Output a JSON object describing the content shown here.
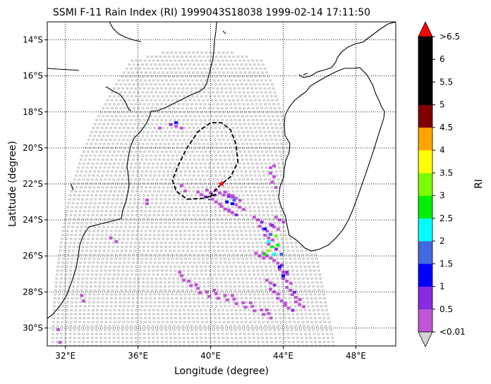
{
  "title": "SSMI F-11 Rain Index (RI) 1999043S18038 1999-02-14 17:11:50",
  "xlabel": "Longitude (degree)",
  "ylabel": "Latitude (degree)",
  "colorbar_label": "RI",
  "chart_data": {
    "type": "map",
    "xlim": [
      31.0,
      50.2
    ],
    "ylim": [
      -31.0,
      -13.0
    ],
    "grid": true,
    "x_ticks": [
      {
        "value": 32,
        "label": "32°E"
      },
      {
        "value": 36,
        "label": "36°E"
      },
      {
        "value": 40,
        "label": "40°E"
      },
      {
        "value": 44,
        "label": "44°E"
      },
      {
        "value": 48,
        "label": "48°E"
      }
    ],
    "y_ticks": [
      {
        "value": -14,
        "label": "14°S"
      },
      {
        "value": -16,
        "label": "16°S"
      },
      {
        "value": -18,
        "label": "18°S"
      },
      {
        "value": -20,
        "label": "20°S"
      },
      {
        "value": -22,
        "label": "22°S"
      },
      {
        "value": -24,
        "label": "24°S"
      },
      {
        "value": -26,
        "label": "26°S"
      },
      {
        "value": -28,
        "label": "28°S"
      },
      {
        "value": -30,
        "label": "30°S"
      }
    ],
    "colorbar": {
      "levels": [
        0.01,
        0.5,
        1,
        1.5,
        2,
        2.5,
        3,
        3.5,
        4,
        4.5,
        5,
        5.5,
        6,
        6.5
      ],
      "tick_labels": [
        "<0.01",
        "0.5",
        "1",
        "1.5",
        "2",
        "2.5",
        "3",
        "3.5",
        "4",
        "4.5",
        "5",
        "5.5",
        "6",
        ">6.5"
      ],
      "colors": [
        "#bf55d6",
        "#8a2be2",
        "#0000ff",
        "#4169e1",
        "#00ffff",
        "#00ee00",
        "#7cfc00",
        "#ffff00",
        "#ffa500",
        "#800000",
        "#000000",
        "#000000",
        "#000000"
      ],
      "under_color": "#d3d3d3",
      "over_color": "#ff0000"
    },
    "storm_center": {
      "lon": 40.6,
      "lat": -22.0,
      "color": "#ff0000"
    },
    "storm_track": [
      [
        40.3,
        -22.6
      ],
      [
        39.6,
        -22.8
      ],
      [
        38.7,
        -22.85
      ],
      [
        38.1,
        -22.4
      ],
      [
        37.9,
        -21.8
      ],
      [
        38.2,
        -21.0
      ],
      [
        38.7,
        -20.0
      ],
      [
        39.3,
        -19.1
      ],
      [
        40.0,
        -18.6
      ],
      [
        40.6,
        -18.6
      ],
      [
        41.1,
        -19.0
      ],
      [
        41.4,
        -19.8
      ],
      [
        41.5,
        -20.8
      ],
      [
        41.1,
        -21.6
      ],
      [
        40.6,
        -22.0
      ],
      [
        40.1,
        -22.5
      ],
      [
        39.9,
        -22.9
      ]
    ],
    "swath": {
      "lat_top": -14.5,
      "lat_bottom": -31.2,
      "left_edge": [
        [
          36.1,
          -14.5
        ],
        [
          34.8,
          -16.5
        ],
        [
          33.7,
          -18.5
        ],
        [
          32.9,
          -20.5
        ],
        [
          32.3,
          -22.5
        ],
        [
          31.9,
          -24.5
        ],
        [
          31.6,
          -26.5
        ],
        [
          31.4,
          -28.5
        ],
        [
          31.3,
          -30.5
        ],
        [
          31.3,
          -31.2
        ]
      ],
      "right_edge": [
        [
          42.5,
          -14.5
        ],
        [
          43.4,
          -16.5
        ],
        [
          44.0,
          -18.5
        ],
        [
          44.6,
          -20.5
        ],
        [
          45.1,
          -22.5
        ],
        [
          45.5,
          -24.5
        ],
        [
          45.9,
          -26.5
        ],
        [
          46.3,
          -28.5
        ],
        [
          46.7,
          -30.5
        ],
        [
          46.8,
          -31.2
        ]
      ]
    },
    "rain_pixels": [
      {
        "lon": 43.3,
        "lat": -21.1,
        "ri": 0.3
      },
      {
        "lon": 43.5,
        "lat": -21.0,
        "ri": 0.3
      },
      {
        "lon": 43.3,
        "lat": -21.4,
        "ri": 0.3
      },
      {
        "lon": 43.5,
        "lat": -21.6,
        "ri": 0.3
      },
      {
        "lon": 43.4,
        "lat": -21.9,
        "ri": 0.3
      },
      {
        "lon": 43.6,
        "lat": -22.2,
        "ri": 0.3
      },
      {
        "lon": 38.1,
        "lat": -18.8,
        "ri": 0.3
      },
      {
        "lon": 38.4,
        "lat": -18.9,
        "ri": 0.3
      },
      {
        "lon": 37.2,
        "lat": -18.9,
        "ri": 0.3
      },
      {
        "lon": 38.4,
        "lat": -22.1,
        "ri": 0.3
      },
      {
        "lon": 38.6,
        "lat": -22.4,
        "ri": 0.3
      },
      {
        "lon": 36.5,
        "lat": -22.9,
        "ri": 0.3
      },
      {
        "lon": 36.5,
        "lat": -23.1,
        "ri": 0.3
      },
      {
        "lon": 34.5,
        "lat": -25.0,
        "ri": 0.3
      },
      {
        "lon": 34.8,
        "lat": -25.2,
        "ri": 0.3
      },
      {
        "lon": 33.0,
        "lat": -28.5,
        "ri": 0.3
      },
      {
        "lon": 32.9,
        "lat": -28.2,
        "ri": 0.3
      },
      {
        "lon": 31.6,
        "lat": -30.1,
        "ri": 0.3
      },
      {
        "lon": 31.7,
        "lat": -30.8,
        "ri": 0.3
      },
      {
        "lon": 37.8,
        "lat": -18.7,
        "ri": 0.7
      },
      {
        "lon": 38.1,
        "lat": -18.6,
        "ri": 1.2
      }
    ],
    "rain_band_west_bottom": [
      [
        38.4,
        -27.1
      ],
      [
        38.8,
        -27.4
      ],
      [
        39.3,
        -27.8
      ],
      [
        39.8,
        -28.0
      ],
      [
        40.3,
        -28.1
      ],
      [
        40.8,
        -28.2
      ],
      [
        41.3,
        -28.4
      ],
      [
        41.8,
        -28.6
      ],
      [
        42.3,
        -28.8
      ],
      [
        42.8,
        -29.0
      ],
      [
        43.2,
        -29.2
      ]
    ],
    "rain_band_main": [
      [
        39.5,
        -22.6
      ],
      [
        40.0,
        -22.5
      ],
      [
        40.5,
        -22.5
      ],
      [
        41.0,
        -22.6
      ],
      [
        41.4,
        -22.8
      ],
      [
        41.6,
        -23.3
      ],
      [
        41.2,
        -23.6
      ],
      [
        40.8,
        -23.4
      ],
      [
        40.3,
        -23.0
      ],
      [
        42.6,
        -24.0
      ],
      [
        42.9,
        -24.5
      ],
      [
        43.2,
        -25.0
      ],
      [
        43.4,
        -25.5
      ],
      [
        43.1,
        -26.0
      ],
      [
        42.7,
        -26.0
      ],
      [
        43.7,
        -26.4
      ],
      [
        44.0,
        -26.9
      ],
      [
        44.2,
        -27.4
      ],
      [
        44.4,
        -27.9
      ],
      [
        44.7,
        -28.3
      ],
      [
        44.9,
        -28.7
      ],
      [
        44.3,
        -28.9
      ],
      [
        43.9,
        -28.5
      ],
      [
        43.5,
        -28.0
      ],
      [
        43.3,
        -27.5
      ],
      [
        43.5,
        -24.4
      ],
      [
        43.8,
        -24.0
      ]
    ],
    "rain_core": [
      {
        "lon": 40.9,
        "lat": -23.0,
        "ri": 1.2
      },
      {
        "lon": 41.2,
        "lat": -23.1,
        "ri": 1.2
      },
      {
        "lon": 41.0,
        "lat": -22.7,
        "ri": 0.7
      },
      {
        "lon": 41.3,
        "lat": -22.9,
        "ri": 1.7
      },
      {
        "lon": 43.0,
        "lat": -24.5,
        "ri": 1.2
      },
      {
        "lon": 43.3,
        "lat": -24.8,
        "ri": 1.7
      },
      {
        "lon": 43.2,
        "lat": -25.2,
        "ri": 2.2
      },
      {
        "lon": 43.4,
        "lat": -25.5,
        "ri": 2.7
      },
      {
        "lon": 43.2,
        "lat": -25.7,
        "ri": 3.2
      },
      {
        "lon": 43.5,
        "lat": -25.9,
        "ri": 2.2
      },
      {
        "lon": 43.6,
        "lat": -24.9,
        "ri": 3.2
      },
      {
        "lon": 43.8,
        "lat": -26.6,
        "ri": 1.2
      },
      {
        "lon": 44.0,
        "lat": -27.1,
        "ri": 1.2
      },
      {
        "lon": 43.4,
        "lat": -24.3,
        "ri": 0.7
      },
      {
        "lon": 43.7,
        "lat": -25.4,
        "ri": 2.7
      },
      {
        "lon": 43.0,
        "lat": -25.9,
        "ri": 2.7
      },
      {
        "lon": 43.9,
        "lat": -25.9,
        "ri": 1.7
      },
      {
        "lon": 44.2,
        "lat": -26.9,
        "ri": 0.7
      }
    ]
  }
}
